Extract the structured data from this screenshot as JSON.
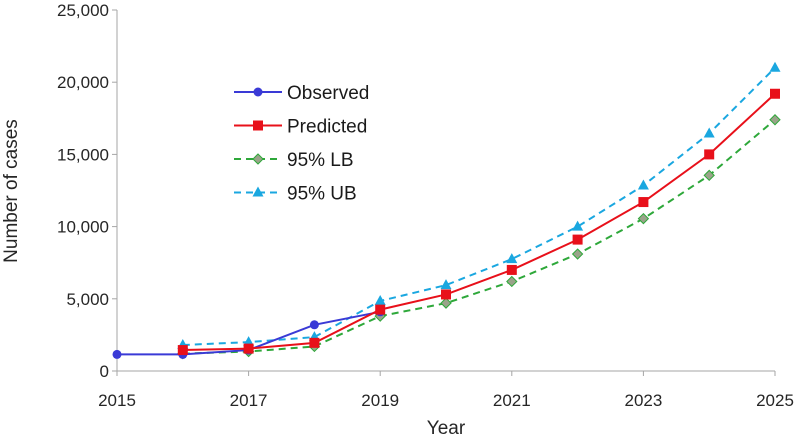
{
  "chart_data": {
    "type": "line",
    "title": "",
    "xlabel": "Year",
    "ylabel": "Number of cases",
    "xlim": [
      2015,
      2025
    ],
    "ylim": [
      0,
      25000
    ],
    "x_ticks": [
      2015,
      2017,
      2019,
      2021,
      2023,
      2025
    ],
    "x_tick_labels": [
      "2015",
      "2017",
      "2019",
      "2021",
      "2023",
      "2025"
    ],
    "y_ticks": [
      0,
      5000,
      10000,
      15000,
      20000,
      25000
    ],
    "y_tick_labels": [
      "0",
      "5,000",
      "10,000",
      "15,000",
      "20,000",
      "25,000"
    ],
    "grid": false,
    "legend_position": "upper-left",
    "series": [
      {
        "name": "Observed",
        "color": "#3a3ad6",
        "dash": "solid",
        "marker": "circle",
        "x": [
          2015,
          2016,
          2017,
          2018,
          2019
        ],
        "values": [
          1150,
          1150,
          1450,
          3200,
          4100
        ]
      },
      {
        "name": "Predicted",
        "color": "#e8101a",
        "dash": "solid",
        "marker": "square",
        "x": [
          2016,
          2017,
          2018,
          2019,
          2020,
          2021,
          2022,
          2023,
          2024,
          2025
        ],
        "values": [
          1450,
          1550,
          1950,
          4250,
          5300,
          7000,
          9100,
          11700,
          15000,
          19200
        ]
      },
      {
        "name": "95% LB",
        "color": "#2ea83a",
        "dash": "dashed",
        "marker": "diamond",
        "x": [
          2016,
          2017,
          2018,
          2019,
          2020,
          2021,
          2022,
          2023,
          2024,
          2025
        ],
        "values": [
          1200,
          1350,
          1700,
          3800,
          4700,
          6200,
          8100,
          10550,
          13550,
          17400
        ]
      },
      {
        "name": "95% UB",
        "color": "#1aa7e0",
        "dash": "dashed",
        "marker": "triangle",
        "x": [
          2016,
          2017,
          2018,
          2019,
          2020,
          2021,
          2022,
          2023,
          2024,
          2025
        ],
        "values": [
          1800,
          2000,
          2350,
          4850,
          5950,
          7750,
          10000,
          12850,
          16450,
          21000
        ]
      }
    ]
  }
}
